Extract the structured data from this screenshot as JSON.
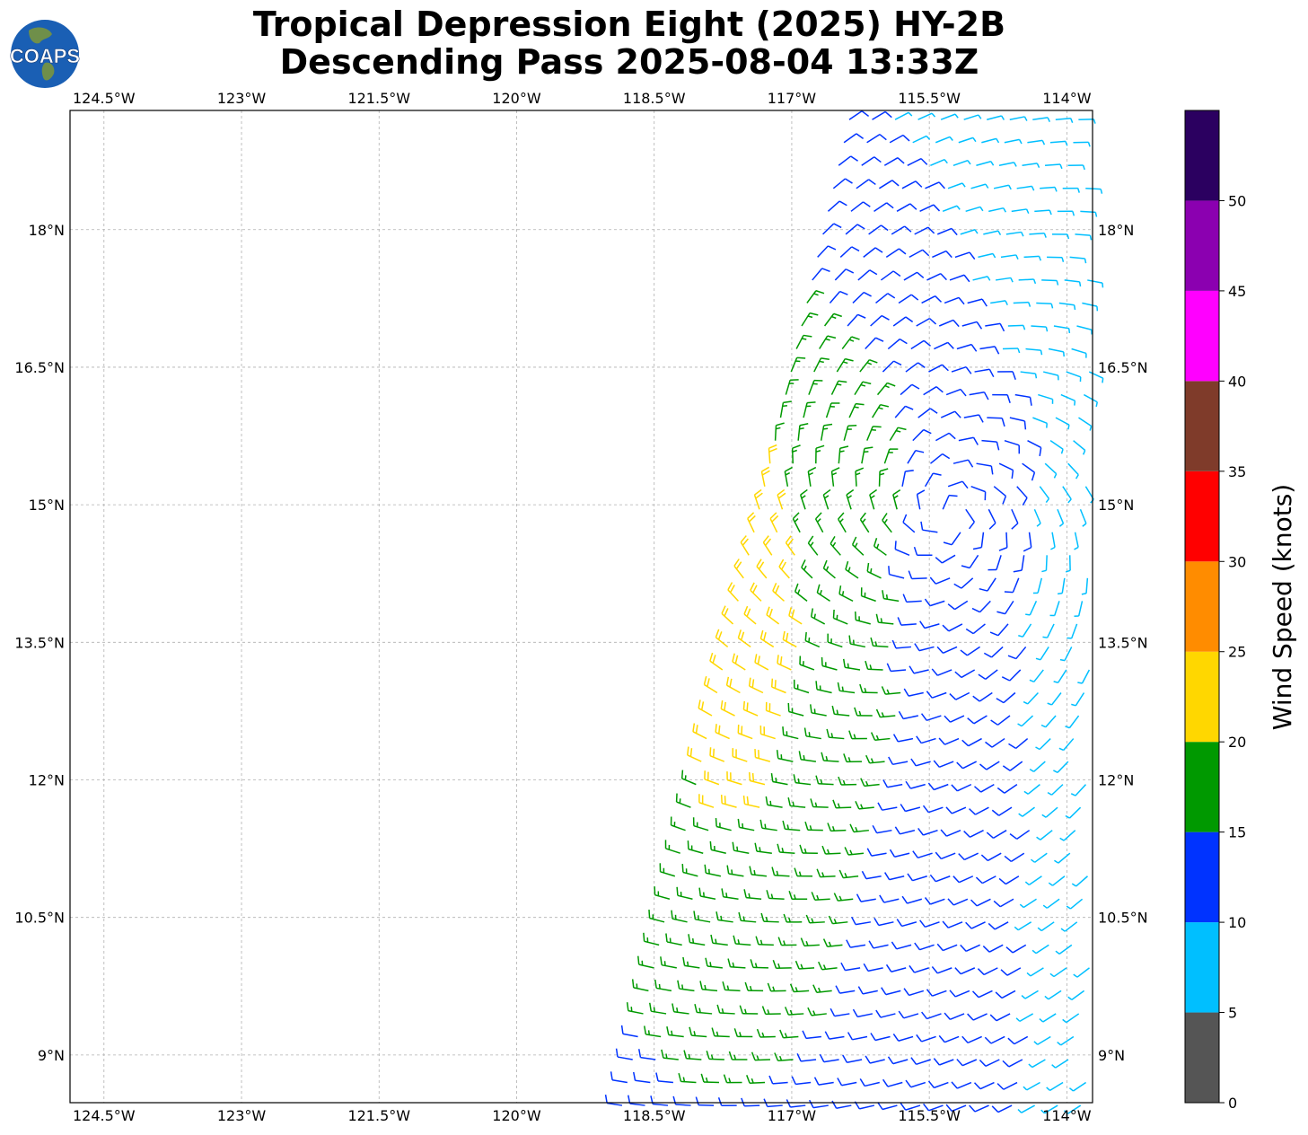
{
  "title_line1": "Tropical Depression Eight (2025) HY-2B",
  "title_line2": "Descending Pass 2025-08-04 13:33Z",
  "logo": {
    "text": "COAPS",
    "ocean_color": "#1a5fb4",
    "land_color": "#6f8f4a"
  },
  "map": {
    "lon_labels": [
      "124.5°W",
      "123°W",
      "121.5°W",
      "120°W",
      "118.5°W",
      "117°W",
      "115.5°W",
      "114°W"
    ],
    "lat_labels": [
      "18°N",
      "16.5°N",
      "15°N",
      "13.5°N",
      "12°N",
      "10.5°N",
      "9°N"
    ],
    "lon_values": [
      -124.5,
      -123,
      -121.5,
      -120,
      -118.5,
      -117,
      -115.5,
      -114
    ],
    "lat_values": [
      18,
      16.5,
      15,
      13.5,
      12,
      10.5,
      9
    ],
    "lon_range": [
      -124.87,
      -113.72
    ],
    "lat_range": [
      8.48,
      19.3
    ],
    "gridlines": true,
    "gridline_style": "dashed gray"
  },
  "colorbar": {
    "label": "Wind Speed (knots)",
    "tick_labels": [
      "0",
      "5",
      "10",
      "15",
      "20",
      "25",
      "30",
      "35",
      "40",
      "45",
      "50"
    ],
    "bins": [
      {
        "min": 0,
        "max": 5,
        "color": "#555555"
      },
      {
        "min": 5,
        "max": 10,
        "color": "#00bfff"
      },
      {
        "min": 10,
        "max": 15,
        "color": "#0033ff"
      },
      {
        "min": 15,
        "max": 20,
        "color": "#009900"
      },
      {
        "min": 20,
        "max": 25,
        "color": "#ffd700"
      },
      {
        "min": 25,
        "max": 30,
        "color": "#ff8c00"
      },
      {
        "min": 30,
        "max": 35,
        "color": "#ff0000"
      },
      {
        "min": 35,
        "max": 40,
        "color": "#7f3b2a"
      },
      {
        "min": 40,
        "max": 45,
        "color": "#ff00ff"
      },
      {
        "min": 45,
        "max": 50,
        "color": "#8b00b0"
      },
      {
        "min": 50,
        "max": 55,
        "color": "#2b0060"
      }
    ]
  },
  "wind_field": {
    "center": {
      "lon": -115.3,
      "lat": 14.9
    },
    "swath_lat_range": [
      8.45,
      19.3
    ],
    "swath_west_edge_lon": {
      "at_south": -118.85,
      "at_north": -116.35
    },
    "swath_east_edge_lon": -113.75,
    "grid_spacing_deg": 0.25,
    "barb_colors_by_speed": [
      "#555555",
      "#00bfff",
      "#0033ff",
      "#009900",
      "#ffd700"
    ]
  }
}
